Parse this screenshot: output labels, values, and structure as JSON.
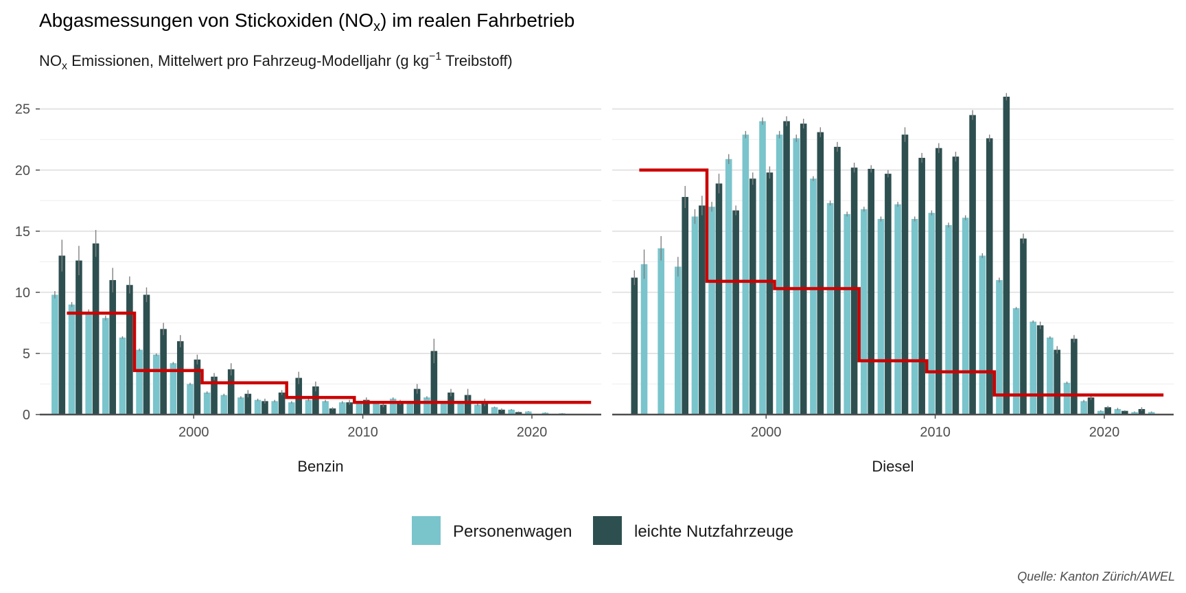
{
  "chart_data": {
    "type": "bar",
    "title_main": "Abgasmessungen von Stickoxiden (NO",
    "title_sub": "x",
    "title_end": ") im realen Fahrbetrieb",
    "subtitle_a": "NO",
    "subtitle_b": "x",
    "subtitle_c": " Emissionen, Mittelwert pro Fahrzeug-Modelljahr (g kg",
    "subtitle_d": "−1",
    "subtitle_e": " Treibstoff)",
    "caption": "Quelle: Kanton Zürich/AWEL",
    "legend_position": "bottom",
    "grid": true,
    "ylim": [
      0,
      26.5
    ],
    "y_ticks": [
      0,
      5,
      10,
      15,
      20,
      25
    ],
    "x_ticks": [
      2000,
      2010,
      2020
    ],
    "xlim": [
      1990.9,
      2024.1
    ],
    "colors": {
      "Personenwagen": "#7ac4cc",
      "leichte Nutzfahrzeuge": "#2d4f50",
      "limit": "#cc0000",
      "errorbar": "#808080"
    },
    "series_names": [
      "Personenwagen",
      "leichte Nutzfahrzeuge"
    ],
    "panels": [
      {
        "label": "Benzin",
        "bars": [
          {
            "year": 1992,
            "Personenwagen": 9.8,
            "leichte Nutzfahrzeuge": 13.0,
            "err_pw": 0.3,
            "err_lnf": 1.3
          },
          {
            "year": 1993,
            "Personenwagen": 9.0,
            "leichte Nutzfahrzeuge": 12.6,
            "err_pw": 0.2,
            "err_lnf": 1.2
          },
          {
            "year": 1994,
            "Personenwagen": 8.4,
            "leichte Nutzfahrzeuge": 14.0,
            "err_pw": 0.2,
            "err_lnf": 1.1
          },
          {
            "year": 1995,
            "Personenwagen": 7.9,
            "leichte Nutzfahrzeuge": 11.0,
            "err_pw": 0.2,
            "err_lnf": 1.0
          },
          {
            "year": 1996,
            "Personenwagen": 6.3,
            "leichte Nutzfahrzeuge": 10.6,
            "err_pw": 0.1,
            "err_lnf": 0.7
          },
          {
            "year": 1997,
            "Personenwagen": 5.3,
            "leichte Nutzfahrzeuge": 9.8,
            "err_pw": 0.1,
            "err_lnf": 0.6
          },
          {
            "year": 1998,
            "Personenwagen": 4.9,
            "leichte Nutzfahrzeuge": 7.0,
            "err_pw": 0.1,
            "err_lnf": 0.5
          },
          {
            "year": 1999,
            "Personenwagen": 4.2,
            "leichte Nutzfahrzeuge": 6.0,
            "err_pw": 0.1,
            "err_lnf": 0.5
          },
          {
            "year": 2000,
            "Personenwagen": 2.5,
            "leichte Nutzfahrzeuge": 4.5,
            "err_pw": 0.1,
            "err_lnf": 0.4
          },
          {
            "year": 2001,
            "Personenwagen": 1.8,
            "leichte Nutzfahrzeuge": 3.1,
            "err_pw": 0.1,
            "err_lnf": 0.3
          },
          {
            "year": 2002,
            "Personenwagen": 1.6,
            "leichte Nutzfahrzeuge": 3.7,
            "err_pw": 0.1,
            "err_lnf": 0.5
          },
          {
            "year": 2003,
            "Personenwagen": 1.4,
            "leichte Nutzfahrzeuge": 1.7,
            "err_pw": 0.1,
            "err_lnf": 0.3
          },
          {
            "year": 2004,
            "Personenwagen": 1.2,
            "leichte Nutzfahrzeuge": 1.1,
            "err_pw": 0.1,
            "err_lnf": 0.2
          },
          {
            "year": 2005,
            "Personenwagen": 1.1,
            "leichte Nutzfahrzeuge": 1.8,
            "err_pw": 0.1,
            "err_lnf": 0.2
          },
          {
            "year": 2006,
            "Personenwagen": 1.0,
            "leichte Nutzfahrzeuge": 3.0,
            "err_pw": 0.1,
            "err_lnf": 0.5
          },
          {
            "year": 2007,
            "Personenwagen": 1.2,
            "leichte Nutzfahrzeuge": 2.3,
            "err_pw": 0.1,
            "err_lnf": 0.4
          },
          {
            "year": 2008,
            "Personenwagen": 1.1,
            "leichte Nutzfahrzeuge": 0.5,
            "err_pw": 0.1,
            "err_lnf": 0.1
          },
          {
            "year": 2009,
            "Personenwagen": 1.0,
            "leichte Nutzfahrzeuge": 1.0,
            "err_pw": 0.1,
            "err_lnf": 0.2
          },
          {
            "year": 2010,
            "Personenwagen": 1.0,
            "leichte Nutzfahrzeuge": 1.2,
            "err_pw": 0.1,
            "err_lnf": 0.2
          },
          {
            "year": 2011,
            "Personenwagen": 1.0,
            "leichte Nutzfahrzeuge": 0.8,
            "err_pw": 0.1,
            "err_lnf": 0.2
          },
          {
            "year": 2012,
            "Personenwagen": 1.3,
            "leichte Nutzfahrzeuge": 1.0,
            "err_pw": 0.1,
            "err_lnf": 0.2
          },
          {
            "year": 2013,
            "Personenwagen": 1.0,
            "leichte Nutzfahrzeuge": 2.1,
            "err_pw": 0.1,
            "err_lnf": 0.4
          },
          {
            "year": 2014,
            "Personenwagen": 1.4,
            "leichte Nutzfahrzeuge": 5.2,
            "err_pw": 0.1,
            "err_lnf": 1.0
          },
          {
            "year": 2015,
            "Personenwagen": 1.0,
            "leichte Nutzfahrzeuge": 1.8,
            "err_pw": 0.1,
            "err_lnf": 0.3
          },
          {
            "year": 2016,
            "Personenwagen": 1.0,
            "leichte Nutzfahrzeuge": 1.6,
            "err_pw": 0.1,
            "err_lnf": 0.5
          },
          {
            "year": 2017,
            "Personenwagen": 0.8,
            "leichte Nutzfahrzeuge": 1.0,
            "err_pw": 0.1,
            "err_lnf": 0.3
          },
          {
            "year": 2018,
            "Personenwagen": 0.6,
            "leichte Nutzfahrzeuge": 0.4,
            "err_pw": 0.05,
            "err_lnf": 0.1
          },
          {
            "year": 2019,
            "Personenwagen": 0.4,
            "leichte Nutzfahrzeuge": 0.2,
            "err_pw": 0.05,
            "err_lnf": 0.05
          },
          {
            "year": 2020,
            "Personenwagen": 0.25,
            "leichte Nutzfahrzeuge": null,
            "err_pw": 0.03,
            "err_lnf": null
          },
          {
            "year": 2021,
            "Personenwagen": 0.15,
            "leichte Nutzfahrzeuge": null,
            "err_pw": 0.03,
            "err_lnf": null
          },
          {
            "year": 2022,
            "Personenwagen": 0.1,
            "leichte Nutzfahrzeuge": null,
            "err_pw": 0.02,
            "err_lnf": null
          }
        ],
        "limit_steps": [
          {
            "from": 1992.5,
            "to": 1996.5,
            "value": 8.3
          },
          {
            "from": 1996.5,
            "to": 2000.5,
            "value": 3.6
          },
          {
            "from": 2000.5,
            "to": 2005.5,
            "value": 2.6
          },
          {
            "from": 2005.5,
            "to": 2009.5,
            "value": 1.4
          },
          {
            "from": 2009.5,
            "to": 2023.5,
            "value": 1.0
          }
        ]
      },
      {
        "label": "Diesel",
        "bars": [
          {
            "year": 1992,
            "Personenwagen": null,
            "leichte Nutzfahrzeuge": 11.2,
            "err_pw": null,
            "err_lnf": 0.6
          },
          {
            "year": 1993,
            "Personenwagen": 12.3,
            "leichte Nutzfahrzeuge": null,
            "err_pw": 1.2,
            "err_lnf": null
          },
          {
            "year": 1994,
            "Personenwagen": 13.6,
            "leichte Nutzfahrzeuge": null,
            "err_pw": 1.0,
            "err_lnf": null
          },
          {
            "year": 1995,
            "Personenwagen": 12.1,
            "leichte Nutzfahrzeuge": 17.8,
            "err_pw": 0.8,
            "err_lnf": 0.9
          },
          {
            "year": 1996,
            "Personenwagen": 16.2,
            "leichte Nutzfahrzeuge": 17.1,
            "err_pw": 0.6,
            "err_lnf": 0.8
          },
          {
            "year": 1997,
            "Personenwagen": 17.0,
            "leichte Nutzfahrzeuge": 18.9,
            "err_pw": 0.4,
            "err_lnf": 0.8
          },
          {
            "year": 1998,
            "Personenwagen": 20.9,
            "leichte Nutzfahrzeuge": 16.7,
            "err_pw": 0.4,
            "err_lnf": 0.4
          },
          {
            "year": 1999,
            "Personenwagen": 22.9,
            "leichte Nutzfahrzeuge": 19.3,
            "err_pw": 0.3,
            "err_lnf": 0.5
          },
          {
            "year": 2000,
            "Personenwagen": 24.0,
            "leichte Nutzfahrzeuge": 19.8,
            "err_pw": 0.3,
            "err_lnf": 0.5
          },
          {
            "year": 2001,
            "Personenwagen": 22.9,
            "leichte Nutzfahrzeuge": 24.0,
            "err_pw": 0.3,
            "err_lnf": 0.4
          },
          {
            "year": 2002,
            "Personenwagen": 22.6,
            "leichte Nutzfahrzeuge": 23.8,
            "err_pw": 0.3,
            "err_lnf": 0.4
          },
          {
            "year": 2003,
            "Personenwagen": 19.3,
            "leichte Nutzfahrzeuge": 23.1,
            "err_pw": 0.2,
            "err_lnf": 0.4
          },
          {
            "year": 2004,
            "Personenwagen": 17.3,
            "leichte Nutzfahrzeuge": 21.9,
            "err_pw": 0.2,
            "err_lnf": 0.4
          },
          {
            "year": 2005,
            "Personenwagen": 16.4,
            "leichte Nutzfahrzeuge": 20.2,
            "err_pw": 0.2,
            "err_lnf": 0.4
          },
          {
            "year": 2006,
            "Personenwagen": 16.8,
            "leichte Nutzfahrzeuge": 20.1,
            "err_pw": 0.2,
            "err_lnf": 0.3
          },
          {
            "year": 2007,
            "Personenwagen": 16.0,
            "leichte Nutzfahrzeuge": 19.7,
            "err_pw": 0.2,
            "err_lnf": 0.3
          },
          {
            "year": 2008,
            "Personenwagen": 17.2,
            "leichte Nutzfahrzeuge": 22.9,
            "err_pw": 0.2,
            "err_lnf": 0.6
          },
          {
            "year": 2009,
            "Personenwagen": 16.0,
            "leichte Nutzfahrzeuge": 21.0,
            "err_pw": 0.2,
            "err_lnf": 0.4
          },
          {
            "year": 2010,
            "Personenwagen": 16.5,
            "leichte Nutzfahrzeuge": 21.8,
            "err_pw": 0.2,
            "err_lnf": 0.4
          },
          {
            "year": 2011,
            "Personenwagen": 15.5,
            "leichte Nutzfahrzeuge": 21.1,
            "err_pw": 0.2,
            "err_lnf": 0.4
          },
          {
            "year": 2012,
            "Personenwagen": 16.1,
            "leichte Nutzfahrzeuge": 24.5,
            "err_pw": 0.2,
            "err_lnf": 0.4
          },
          {
            "year": 2013,
            "Personenwagen": 13.0,
            "leichte Nutzfahrzeuge": 22.6,
            "err_pw": 0.2,
            "err_lnf": 0.3
          },
          {
            "year": 2014,
            "Personenwagen": 11.0,
            "leichte Nutzfahrzeuge": 26.0,
            "err_pw": 0.2,
            "err_lnf": 0.3
          },
          {
            "year": 2015,
            "Personenwagen": 8.7,
            "leichte Nutzfahrzeuge": 14.4,
            "err_pw": 0.1,
            "err_lnf": 0.4
          },
          {
            "year": 2016,
            "Personenwagen": 7.6,
            "leichte Nutzfahrzeuge": 7.3,
            "err_pw": 0.1,
            "err_lnf": 0.3
          },
          {
            "year": 2017,
            "Personenwagen": 6.3,
            "leichte Nutzfahrzeuge": 5.3,
            "err_pw": 0.1,
            "err_lnf": 0.3
          },
          {
            "year": 2018,
            "Personenwagen": 2.6,
            "leichte Nutzfahrzeuge": 6.2,
            "err_pw": 0.1,
            "err_lnf": 0.3
          },
          {
            "year": 2019,
            "Personenwagen": 1.1,
            "leichte Nutzfahrzeuge": 1.4,
            "err_pw": 0.1,
            "err_lnf": 0.2
          },
          {
            "year": 2020,
            "Personenwagen": 0.3,
            "leichte Nutzfahrzeuge": 0.6,
            "err_pw": 0.05,
            "err_lnf": 0.1
          },
          {
            "year": 2021,
            "Personenwagen": 0.45,
            "leichte Nutzfahrzeuge": 0.3,
            "err_pw": 0.1,
            "err_lnf": 0.05
          },
          {
            "year": 2022,
            "Personenwagen": 0.2,
            "leichte Nutzfahrzeuge": 0.45,
            "err_pw": 0.05,
            "err_lnf": 0.15
          },
          {
            "year": 2023,
            "Personenwagen": 0.2,
            "leichte Nutzfahrzeuge": null,
            "err_pw": 0.05,
            "err_lnf": null
          }
        ],
        "limit_steps": [
          {
            "from": 1992.5,
            "to": 1996.5,
            "value": 20.0
          },
          {
            "from": 1996.5,
            "to": 2000.5,
            "value": 10.9
          },
          {
            "from": 2000.5,
            "to": 2005.5,
            "value": 10.3
          },
          {
            "from": 2005.5,
            "to": 2009.5,
            "value": 4.4
          },
          {
            "from": 2009.5,
            "to": 2013.5,
            "value": 3.5
          },
          {
            "from": 2013.5,
            "to": 2023.5,
            "value": 1.6
          }
        ]
      }
    ]
  }
}
